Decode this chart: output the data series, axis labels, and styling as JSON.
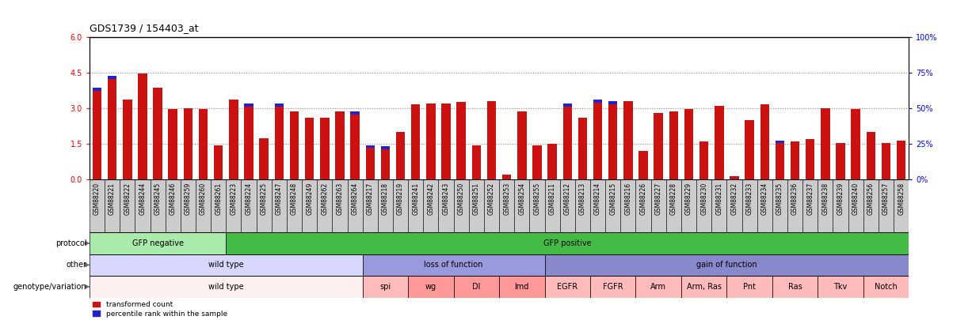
{
  "title": "GDS1739 / 154403_at",
  "samples": [
    "GSM88220",
    "GSM88221",
    "GSM88222",
    "GSM88244",
    "GSM88245",
    "GSM88246",
    "GSM88259",
    "GSM88260",
    "GSM88261",
    "GSM88223",
    "GSM88224",
    "GSM88225",
    "GSM88247",
    "GSM88248",
    "GSM88249",
    "GSM88262",
    "GSM88263",
    "GSM88264",
    "GSM88217",
    "GSM88218",
    "GSM88219",
    "GSM88241",
    "GSM88242",
    "GSM88243",
    "GSM88250",
    "GSM88251",
    "GSM88252",
    "GSM88253",
    "GSM88254",
    "GSM88255",
    "GSM88211",
    "GSM88212",
    "GSM88213",
    "GSM88214",
    "GSM88215",
    "GSM88216",
    "GSM88226",
    "GSM88227",
    "GSM88228",
    "GSM88229",
    "GSM88230",
    "GSM88231",
    "GSM88232",
    "GSM88233",
    "GSM88234",
    "GSM88235",
    "GSM88236",
    "GSM88237",
    "GSM88238",
    "GSM88239",
    "GSM88240",
    "GSM88256",
    "GSM88257",
    "GSM88258"
  ],
  "red_values": [
    3.85,
    4.35,
    3.35,
    4.45,
    3.85,
    2.95,
    3.0,
    2.95,
    1.45,
    3.35,
    3.2,
    1.75,
    3.2,
    2.85,
    2.6,
    2.6,
    2.85,
    2.85,
    1.45,
    1.4,
    2.0,
    3.15,
    3.2,
    3.2,
    3.25,
    1.45,
    3.3,
    0.2,
    2.85,
    1.45,
    1.5,
    3.2,
    2.6,
    3.35,
    3.3,
    3.3,
    1.2,
    2.8,
    2.85,
    2.95,
    1.6,
    3.1,
    0.15,
    2.5,
    3.15,
    1.65,
    1.6,
    1.7,
    3.0,
    1.55,
    2.95,
    2.0,
    1.55,
    1.65
  ],
  "blue_positions": [
    0,
    1,
    10,
    12,
    17,
    18,
    19,
    31,
    33,
    34,
    45
  ],
  "protocol_groups": [
    {
      "label": "GFP negative",
      "start": 0,
      "end": 9,
      "color": "#aaeaaa"
    },
    {
      "label": "GFP positive",
      "start": 9,
      "end": 54,
      "color": "#44bb44"
    }
  ],
  "other_groups": [
    {
      "label": "wild type",
      "start": 0,
      "end": 18,
      "color": "#d8d8ff"
    },
    {
      "label": "loss of function",
      "start": 18,
      "end": 30,
      "color": "#9999dd"
    },
    {
      "label": "gain of function",
      "start": 30,
      "end": 54,
      "color": "#8888cc"
    }
  ],
  "genotype_groups": [
    {
      "label": "wild type",
      "start": 0,
      "end": 18,
      "color": "#fff0f0"
    },
    {
      "label": "spi",
      "start": 18,
      "end": 21,
      "color": "#ffbbbb"
    },
    {
      "label": "wg",
      "start": 21,
      "end": 24,
      "color": "#ff9999"
    },
    {
      "label": "Dl",
      "start": 24,
      "end": 27,
      "color": "#ff9999"
    },
    {
      "label": "lmd",
      "start": 27,
      "end": 30,
      "color": "#ff9999"
    },
    {
      "label": "EGFR",
      "start": 30,
      "end": 33,
      "color": "#ffbbbb"
    },
    {
      "label": "FGFR",
      "start": 33,
      "end": 36,
      "color": "#ffbbbb"
    },
    {
      "label": "Arm",
      "start": 36,
      "end": 39,
      "color": "#ffbbbb"
    },
    {
      "label": "Arm, Ras",
      "start": 39,
      "end": 42,
      "color": "#ffbbbb"
    },
    {
      "label": "Pnt",
      "start": 42,
      "end": 45,
      "color": "#ffbbbb"
    },
    {
      "label": "Ras",
      "start": 45,
      "end": 48,
      "color": "#ffbbbb"
    },
    {
      "label": "Tkv",
      "start": 48,
      "end": 51,
      "color": "#ffbbbb"
    },
    {
      "label": "Notch",
      "start": 51,
      "end": 54,
      "color": "#ffbbbb"
    }
  ],
  "ylim_left": [
    0,
    6
  ],
  "yticks_left": [
    0,
    1.5,
    3.0,
    4.5,
    6
  ],
  "ylim_right": [
    0,
    100
  ],
  "yticks_right": [
    0,
    25,
    50,
    75,
    100
  ],
  "bar_color": "#cc1111",
  "blue_color": "#2222cc",
  "dotted_line_color": "#888888",
  "tick_box_color": "#cccccc"
}
